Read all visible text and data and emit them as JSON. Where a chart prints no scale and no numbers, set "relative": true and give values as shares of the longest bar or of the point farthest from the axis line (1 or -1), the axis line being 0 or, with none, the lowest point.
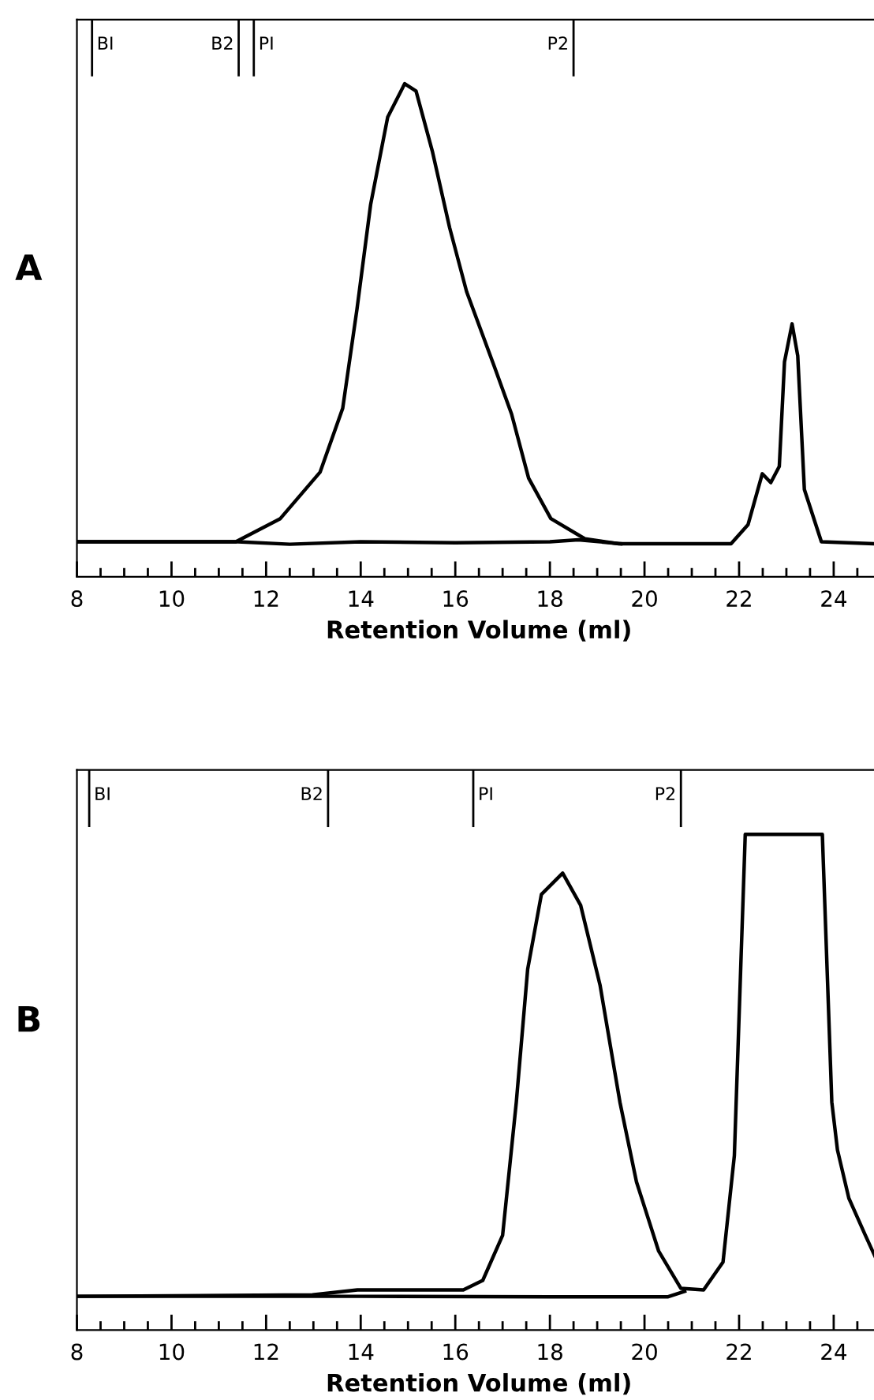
{
  "chart_data": [
    {
      "type": "line",
      "title": "A",
      "xlabel": "Retention Volume (ml)",
      "relative": true,
      "xlim": [
        8,
        25.0
      ],
      "xticks": [
        8,
        {
          "value": 8.5,
          "label": null
        },
        {
          "value": 9,
          "label": null
        },
        {
          "value": 9.5,
          "label": null
        },
        10,
        {
          "value": 10.5,
          "label": null
        },
        {
          "value": 11,
          "label": null
        },
        {
          "value": 11.5,
          "label": null
        },
        12,
        {
          "value": 12.5,
          "label": null
        },
        {
          "value": 13,
          "label": null
        },
        {
          "value": 13.5,
          "label": null
        },
        14,
        {
          "value": 14.5,
          "label": null
        },
        {
          "value": 15,
          "label": null
        },
        {
          "value": 15.5,
          "label": null
        },
        16,
        {
          "value": 16.5,
          "label": null
        },
        {
          "value": 17,
          "label": null
        },
        {
          "value": 17.5,
          "label": null
        },
        18,
        {
          "value": 18.5,
          "label": null
        },
        {
          "value": 19,
          "label": null
        },
        {
          "value": 19.5,
          "label": null
        },
        20,
        {
          "value": 20.5,
          "label": null
        },
        {
          "value": 21,
          "label": null
        },
        {
          "value": 21.5,
          "label": null
        },
        22,
        {
          "value": 22.5,
          "label": null
        },
        {
          "value": 23,
          "label": null
        },
        {
          "value": 23.5,
          "label": null
        },
        24,
        {
          "value": 24.5,
          "label": null
        }
      ],
      "grid": false,
      "marker": "none",
      "line_style": "solid",
      "series": [
        {
          "color": "#000000",
          "x": [
            8,
            11.36,
            12.3,
            13.14,
            13.62,
            13.92,
            14.21,
            14.57,
            14.93,
            15.17,
            15.52,
            15.88,
            16.24,
            16.83,
            17.19,
            17.55,
            18.02,
            18.74,
            19.45,
            21.83,
            22.19,
            22.49,
            22.67,
            22.85,
            22.96,
            23.12,
            23.24,
            23.38,
            23.74,
            24.9
          ],
          "values": [
            0.071,
            0.071,
            0.118,
            0.212,
            0.342,
            0.542,
            0.755,
            0.932,
            1.0,
            0.985,
            0.861,
            0.708,
            0.578,
            0.425,
            0.33,
            0.2,
            0.118,
            0.077,
            0.067,
            0.067,
            0.106,
            0.209,
            0.191,
            0.224,
            0.436,
            0.513,
            0.448,
            0.177,
            0.071,
            0.067
          ]
        },
        {
          "color": "#000000",
          "x": [
            8,
            11.4,
            12.5,
            14,
            16,
            18,
            18.6,
            19.5
          ],
          "values": [
            0.071,
            0.071,
            0.066,
            0.071,
            0.069,
            0.071,
            0.075,
            0.067
          ]
        }
      ],
      "ref_lines": [
        {
          "axis": "x",
          "value": 8.32,
          "label": "BI"
        },
        {
          "axis": "x",
          "value": 11.42,
          "label": "B2"
        },
        {
          "axis": "x",
          "value": 11.74,
          "label": "PI"
        },
        {
          "axis": "x",
          "value": 18.5,
          "label": "P2"
        }
      ]
    },
    {
      "type": "line",
      "title": "B",
      "xlabel": "Retention Volume (ml)",
      "relative": true,
      "xlim": [
        8,
        25
      ],
      "xticks": [
        8,
        {
          "value": 8.5,
          "label": null
        },
        {
          "value": 9,
          "label": null
        },
        {
          "value": 9.5,
          "label": null
        },
        10,
        {
          "value": 10.5,
          "label": null
        },
        {
          "value": 11,
          "label": null
        },
        {
          "value": 11.5,
          "label": null
        },
        12,
        {
          "value": 12.5,
          "label": null
        },
        {
          "value": 13,
          "label": null
        },
        {
          "value": 13.5,
          "label": null
        },
        14,
        {
          "value": 14.5,
          "label": null
        },
        {
          "value": 15,
          "label": null
        },
        {
          "value": 15.5,
          "label": null
        },
        16,
        {
          "value": 16.5,
          "label": null
        },
        {
          "value": 17,
          "label": null
        },
        {
          "value": 17.5,
          "label": null
        },
        18,
        {
          "value": 18.5,
          "label": null
        },
        {
          "value": 19,
          "label": null
        },
        {
          "value": 19.5,
          "label": null
        },
        20,
        {
          "value": 20.5,
          "label": null
        },
        {
          "value": 21,
          "label": null
        },
        {
          "value": 21.5,
          "label": null
        },
        22,
        {
          "value": 22.5,
          "label": null
        },
        {
          "value": 23,
          "label": null
        },
        {
          "value": 23.5,
          "label": null
        },
        24,
        {
          "value": 24.5,
          "label": null
        }
      ],
      "grid": false,
      "marker": "none",
      "line_style": "solid",
      "series": [
        {
          "color": "#000000",
          "x": [
            8,
            12.98,
            13.93,
            16.17,
            16.58,
            17.0,
            17.29,
            17.53,
            17.82,
            18.27,
            18.65,
            19.06,
            19.48,
            19.83,
            20.3,
            20.77,
            21.25,
            21.66,
            21.9,
            22.13,
            23.76,
            23.96,
            24.08,
            24.32,
            24.67,
            24.9
          ],
          "values": [
            0.068,
            0.071,
            0.081,
            0.081,
            0.1,
            0.191,
            0.46,
            0.728,
            0.879,
            0.922,
            0.857,
            0.696,
            0.46,
            0.299,
            0.159,
            0.084,
            0.081,
            0.137,
            0.352,
            1.0,
            1.0,
            0.46,
            0.363,
            0.266,
            0.191,
            0.143
          ]
        },
        {
          "color": "#000000",
          "x": [
            8,
            14,
            18,
            20.5,
            20.85
          ],
          "values": [
            0.068,
            0.068,
            0.067,
            0.067,
            0.078
          ]
        }
      ],
      "ref_lines": [
        {
          "axis": "x",
          "value": 8.26,
          "label": "BI"
        },
        {
          "axis": "x",
          "value": 13.31,
          "label": "B2"
        },
        {
          "axis": "x",
          "value": 16.38,
          "label": "PI"
        },
        {
          "axis": "x",
          "value": 20.77,
          "label": "P2"
        }
      ]
    }
  ]
}
